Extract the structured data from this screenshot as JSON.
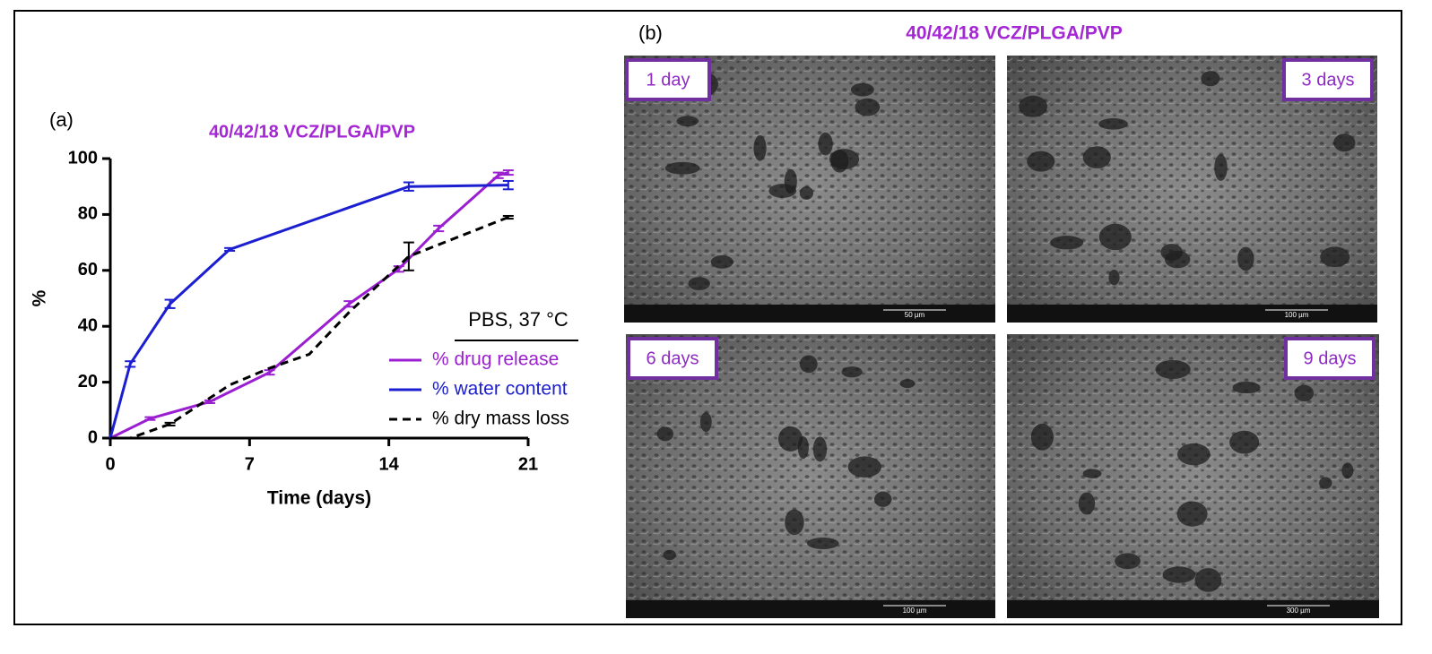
{
  "panel_a": {
    "label": "(a)"
  },
  "chart_data": {
    "type": "line",
    "title": "40/42/18  VCZ/PLGA/PVP",
    "xlabel": "Time (days)",
    "ylabel": "%",
    "xlim": [
      0,
      21
    ],
    "xticks": [
      0,
      7,
      14,
      21
    ],
    "ylim": [
      0,
      100
    ],
    "yticks": [
      0,
      20,
      40,
      60,
      80,
      100
    ],
    "legend_title": "PBS, 37 °C",
    "legend": "lower right",
    "series": [
      {
        "name": "% drug release",
        "color": "#9b1fd1",
        "dashed": false,
        "x": [
          0,
          2,
          5,
          8,
          12,
          14.5,
          16.5,
          19.5,
          20
        ],
        "values": [
          0,
          7,
          13,
          23.5,
          48,
          60.5,
          75,
          94,
          95
        ],
        "errors": [
          0,
          0.5,
          0.5,
          0.8,
          1,
          1,
          1,
          1,
          0.8
        ]
      },
      {
        "name": "% water content",
        "color": "#1c1fd0",
        "dashed": false,
        "x": [
          0,
          1,
          3,
          6,
          15,
          20
        ],
        "values": [
          0,
          26.5,
          48,
          67.5,
          90,
          90.5
        ],
        "errors": [
          0,
          1,
          1.5,
          0.5,
          1.5,
          1.5
        ]
      },
      {
        "name": "% dry mass loss",
        "color": "#000000",
        "dashed": true,
        "x": [
          0,
          1,
          3,
          6,
          8,
          10,
          12,
          15,
          20
        ],
        "values": [
          0,
          0,
          5,
          19,
          25,
          30,
          45,
          65,
          79
        ],
        "errors": [
          0,
          0,
          0.5,
          0,
          0,
          0,
          0,
          5,
          0.5
        ]
      }
    ]
  },
  "panel_b": {
    "label": "(b)",
    "title": "40/42/18 VCZ/PLGA/PVP",
    "images": [
      {
        "label": "1 day",
        "scale_bar": "50 µm"
      },
      {
        "label": "3 days",
        "scale_bar": "100 µm"
      },
      {
        "label": "6 days",
        "scale_bar": "100 µm"
      },
      {
        "label": "9 days",
        "scale_bar": "300 µm"
      }
    ]
  }
}
